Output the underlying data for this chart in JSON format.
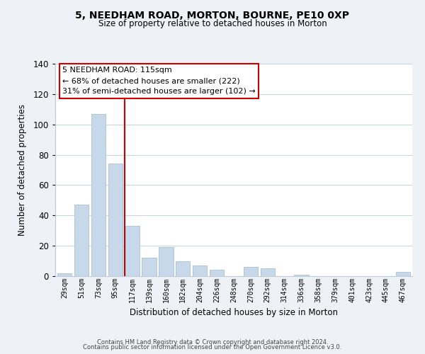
{
  "title": "5, NEEDHAM ROAD, MORTON, BOURNE, PE10 0XP",
  "subtitle": "Size of property relative to detached houses in Morton",
  "xlabel": "Distribution of detached houses by size in Morton",
  "ylabel": "Number of detached properties",
  "bar_labels": [
    "29sqm",
    "51sqm",
    "73sqm",
    "95sqm",
    "117sqm",
    "139sqm",
    "160sqm",
    "182sqm",
    "204sqm",
    "226sqm",
    "248sqm",
    "270sqm",
    "292sqm",
    "314sqm",
    "336sqm",
    "358sqm",
    "379sqm",
    "401sqm",
    "423sqm",
    "445sqm",
    "467sqm"
  ],
  "bar_values": [
    2,
    47,
    107,
    74,
    33,
    12,
    19,
    10,
    7,
    4,
    0,
    6,
    5,
    0,
    1,
    0,
    0,
    0,
    0,
    0,
    3
  ],
  "bar_color": "#c8d8eb",
  "bar_edge_color": "#a8c0d8",
  "vline_color": "#cc0000",
  "ylim": [
    0,
    140
  ],
  "yticks": [
    0,
    20,
    40,
    60,
    80,
    100,
    120,
    140
  ],
  "annotation_title": "5 NEEDHAM ROAD: 115sqm",
  "annotation_line1": "← 68% of detached houses are smaller (222)",
  "annotation_line2": "31% of semi-detached houses are larger (102) →",
  "footer_line1": "Contains HM Land Registry data © Crown copyright and database right 2024.",
  "footer_line2": "Contains public sector information licensed under the Open Government Licence v3.0.",
  "bg_color": "#eef2f7",
  "plot_bg_color": "#ffffff",
  "grid_color": "#c8d4e0"
}
